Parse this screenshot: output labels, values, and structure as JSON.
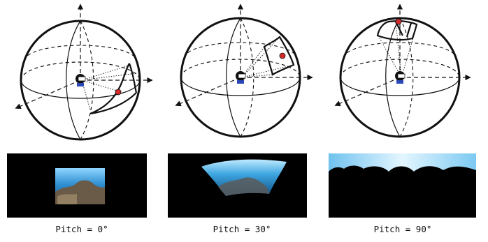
{
  "panels": [
    {
      "pitch_deg": 0,
      "caption": "Pitch = 0°"
    },
    {
      "pitch_deg": 30,
      "caption": "Pitch = 30°"
    },
    {
      "pitch_deg": 90,
      "caption": "Pitch = 90°"
    }
  ],
  "colors": {
    "sphere_stroke": "#111111",
    "viewpoint_dot": "#d42a2a",
    "panel_background": "#000000",
    "water_light": "#cfeeff",
    "water_mid": "#3a9fd8",
    "water_deep": "#0b4a86",
    "reef": "#6a5a48"
  },
  "icons": [
    "viewer-avatar-icon",
    "axis-arrow-icon",
    "viewpoint-dot-icon"
  ]
}
